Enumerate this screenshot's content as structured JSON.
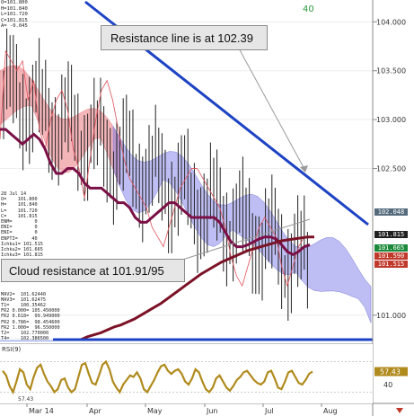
{
  "chart_data": {
    "type": "line",
    "title": "",
    "x_tick_labels": [
      "Mar 14",
      "Apr",
      "May",
      "Jun",
      "Jul",
      "Aug"
    ],
    "price_axis": {
      "ylim": [
        100.75,
        104.15
      ],
      "tick_labels": [
        "104.000",
        "103.500",
        "103.000",
        "102.500",
        "101.000"
      ]
    },
    "top_count_label": "40",
    "price_tags": [
      {
        "label": "102.048",
        "color": "#556b7c"
      },
      {
        "label": "101.815",
        "color": "#202020"
      },
      {
        "label": "101.665",
        "color": "#1a8a3a"
      },
      {
        "label": "101.590",
        "color": "#c0392b"
      },
      {
        "label": "101.515",
        "color": "#c0392b"
      }
    ],
    "info_header": [
      "O=101.800",
      "H=101.840",
      "L=101.720",
      "C=101.815",
      "A= -0.045"
    ],
    "side_panel": [
      "28 Jul 14",
      "O=    101.800",
      "H=    101.840",
      "L=    101.720",
      "C=    101.815",
      "ENM=        0",
      "ENI=        0",
      "ENI=        0",
      "ENPTI=     40",
      "Ichku1= 101.515",
      "Ichku2= 101.665",
      "Ichku3= 101.815",
      "",
      "",
      "",
      "",
      "",
      "",
      "MAV2=  101.62440",
      "MAV3=  101.62475",
      "T1=    100.35462",
      "FR2 0.000= 105.450000",
      "FR2 0.618=  99.949000",
      "FR2 0.786=  98.454600",
      "FR2 1.000=  96.550000",
      "T2=    102.770000",
      "T4=    102.386500"
    ],
    "callouts": {
      "resistance": "Resistance line is at 102.39",
      "cloud": "Cloud resistance at 101.91/95"
    },
    "rsi": {
      "label": "RSI(9)",
      "ylim": [
        20,
        80
      ],
      "tick_labels": [
        "40"
      ],
      "last_value_label": "57.43",
      "left_value_label": "57.43",
      "values": [
        58,
        52,
        38,
        30,
        44,
        60,
        56,
        40,
        34,
        50,
        62,
        66,
        54,
        44,
        38,
        30,
        34,
        46,
        48,
        36,
        30,
        34,
        50,
        66,
        68,
        54,
        42,
        40,
        52,
        66,
        70,
        60,
        44,
        36,
        30,
        40,
        46,
        52,
        50,
        56,
        48,
        34,
        30,
        38,
        46,
        56,
        64,
        66,
        58,
        54,
        58,
        60,
        54,
        44,
        40,
        48,
        60,
        56,
        44,
        34,
        30,
        36,
        48,
        52,
        44,
        36,
        32,
        38,
        46,
        50,
        56,
        58,
        52,
        46,
        42,
        40,
        44,
        56,
        58,
        48,
        36,
        34,
        44,
        56,
        58,
        50,
        42,
        40,
        46,
        54,
        57
      ]
    },
    "series": [
      {
        "name": "",
        "color": "#e2525a",
        "values": [
          102.8,
          103.7,
          103.6,
          103.5,
          103.6,
          103.2,
          103.4,
          102.9,
          102.7,
          103.0,
          103.2,
          103.3,
          103.1,
          102.7,
          102.5,
          102.2,
          102.6,
          103.0,
          103.3,
          103.4,
          103.2,
          102.9,
          102.6,
          102.4,
          102.3,
          102.2,
          102.1,
          101.9,
          101.8,
          101.7,
          101.9,
          102.1,
          102.3,
          102.4,
          102.5,
          102.5,
          102.4,
          102.3,
          102.2,
          102.1,
          101.9,
          101.6,
          101.4,
          101.3,
          101.5,
          101.7,
          101.9,
          102.0,
          101.9,
          101.8,
          101.5,
          101.3,
          101.5,
          101.7,
          101.8,
          101.8
        ]
      },
      {
        "name": "",
        "color": "#7a1045",
        "values": [
          102.9,
          102.9,
          102.85,
          102.8,
          102.75,
          102.8,
          102.85,
          102.8,
          102.7,
          102.55,
          102.45,
          102.45,
          102.5,
          102.5,
          102.45,
          102.35,
          102.3,
          102.3,
          102.3,
          102.25,
          102.2,
          102.15,
          102.15,
          102.1,
          102.0,
          101.95,
          101.95,
          102.0,
          102.05,
          102.1,
          102.15,
          102.15,
          102.1,
          102.05,
          102.0,
          102.0,
          102.0,
          102.0,
          102.0,
          101.95,
          101.85,
          101.75,
          101.7,
          101.7,
          101.72,
          101.75,
          101.78,
          101.8,
          101.8,
          101.78,
          101.72,
          101.65,
          101.62,
          101.65,
          101.7,
          101.72
        ]
      },
      {
        "name": "",
        "color": "#7b1226",
        "values": [
          100.75,
          100.78,
          100.8,
          100.82,
          100.85,
          100.88,
          100.9,
          100.93,
          100.96,
          101.0,
          101.04,
          101.08,
          101.12,
          101.17,
          101.22,
          101.27,
          101.32,
          101.37,
          101.42,
          101.46,
          101.5,
          101.54,
          101.57,
          101.6,
          101.63,
          101.66,
          101.68,
          101.7,
          101.72,
          101.74,
          101.76,
          101.77,
          101.78,
          101.79,
          101.8,
          101.8
        ]
      }
    ]
  }
}
